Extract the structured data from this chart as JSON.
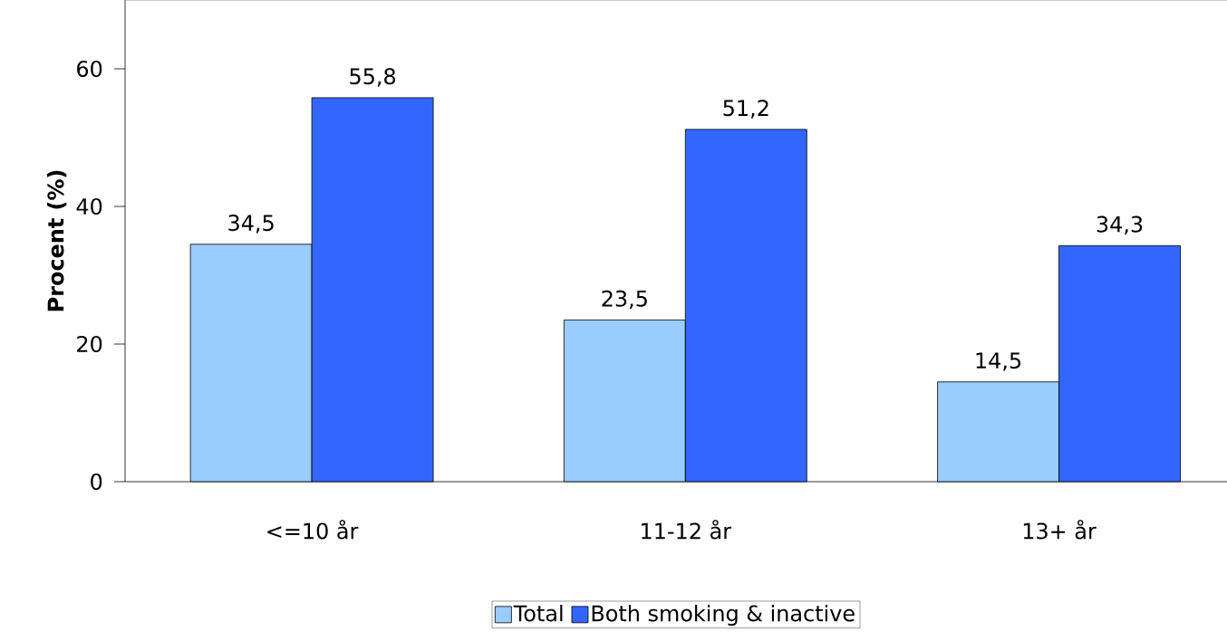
{
  "chart_data": {
    "type": "bar",
    "ylabel": "Procent (%)",
    "categories": [
      "<=10 år",
      "11-12 år",
      "13+ år"
    ],
    "series": [
      {
        "name": "Total",
        "color": "#99ccff",
        "values": [
          34.5,
          23.5,
          14.5
        ],
        "value_labels": [
          "34,5",
          "23,5",
          "14,5"
        ]
      },
      {
        "name": "Both smoking & inactive",
        "color": "#3366ff",
        "values": [
          55.8,
          51.2,
          34.3
        ],
        "value_labels": [
          "55,8",
          "51,2",
          "34,3"
        ]
      }
    ],
    "ylim": [
      0,
      70
    ],
    "yticks": [
      0,
      20,
      40,
      60
    ],
    "legend": "bottom"
  }
}
